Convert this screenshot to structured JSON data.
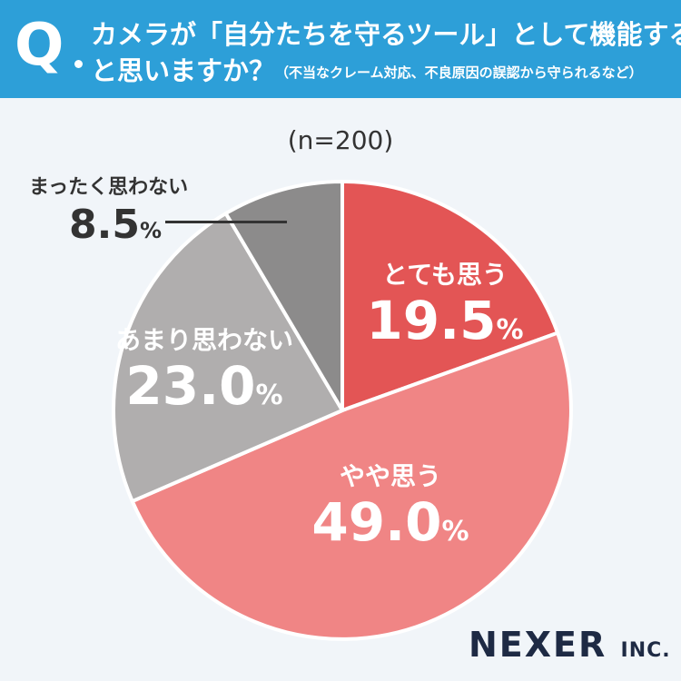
{
  "question": {
    "mark": "Q",
    "line1": "カメラが「自分たちを守るツール」として機能する",
    "line2": "と思いますか？",
    "note": "（不当なクレーム対応、不良原因の誤認から守られるなど）"
  },
  "chart_data": {
    "type": "pie",
    "sample_label": "(n=200)",
    "unit": "%",
    "slices": [
      {
        "label": "とても思う",
        "value_text": "19.5",
        "value": 19.5,
        "color": "#e35555"
      },
      {
        "label": "やや思う",
        "value_text": "49.0",
        "value": 49.0,
        "color": "#f08585"
      },
      {
        "label": "あまり思わない",
        "value_text": "23.0",
        "value": 23.0,
        "color": "#b0aeae"
      },
      {
        "label": "まったく思わない",
        "value_text": "8.5",
        "value": 8.5,
        "color": "#8c8b8b"
      }
    ],
    "start": "12 o'clock",
    "direction": "clockwise"
  },
  "brand": {
    "name": "NEXER",
    "suffix": "INC."
  }
}
